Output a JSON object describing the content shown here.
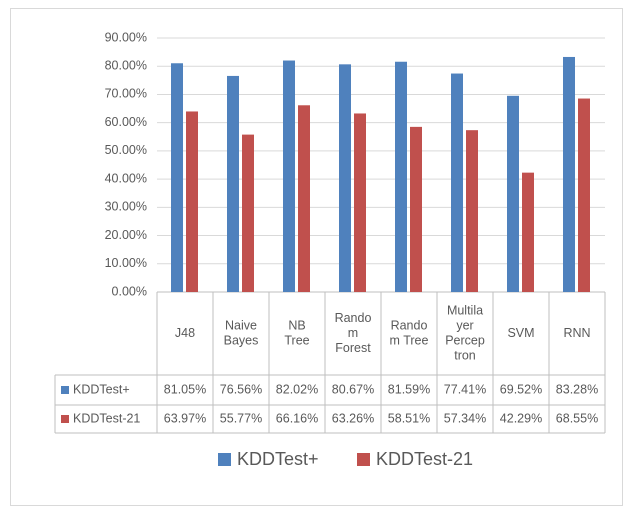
{
  "chart_data": {
    "type": "bar",
    "categories": [
      [
        "J48"
      ],
      [
        "Naive",
        "Bayes"
      ],
      [
        "NB",
        "Tree"
      ],
      [
        "Rando",
        "m",
        "Forest"
      ],
      [
        "Rando",
        "m Tree"
      ],
      [
        "Multila",
        "yer",
        "Percep",
        "tron"
      ],
      [
        "SVM"
      ],
      [
        "RNN"
      ]
    ],
    "series": [
      {
        "name": "KDDTest+",
        "color": "#4f81bd",
        "values": [
          81.05,
          76.56,
          82.02,
          80.67,
          81.59,
          77.41,
          69.52,
          83.28
        ],
        "value_labels": [
          "81.05%",
          "76.56%",
          "82.02%",
          "80.67%",
          "81.59%",
          "77.41%",
          "69.52%",
          "83.28%"
        ]
      },
      {
        "name": "KDDTest-21",
        "color": "#c0504d",
        "values": [
          63.97,
          55.77,
          66.16,
          63.26,
          58.51,
          57.34,
          42.29,
          68.55
        ],
        "value_labels": [
          "63.97%",
          "55.77%",
          "66.16%",
          "63.26%",
          "58.51%",
          "57.34%",
          "42.29%",
          "68.55%"
        ]
      }
    ],
    "ylim": [
      0,
      90
    ],
    "yticks": [
      {
        "value": 0,
        "label": "0.00%"
      },
      {
        "value": 10,
        "label": "10.00%"
      },
      {
        "value": 20,
        "label": "20.00%"
      },
      {
        "value": 30,
        "label": "30.00%"
      },
      {
        "value": 40,
        "label": "40.00%"
      },
      {
        "value": 50,
        "label": "50.00%"
      },
      {
        "value": 60,
        "label": "60.00%"
      },
      {
        "value": 70,
        "label": "70.00%"
      },
      {
        "value": 80,
        "label": "80.00%"
      },
      {
        "value": 90,
        "label": "90.00%"
      }
    ],
    "grid": true,
    "legend": "bottom"
  }
}
